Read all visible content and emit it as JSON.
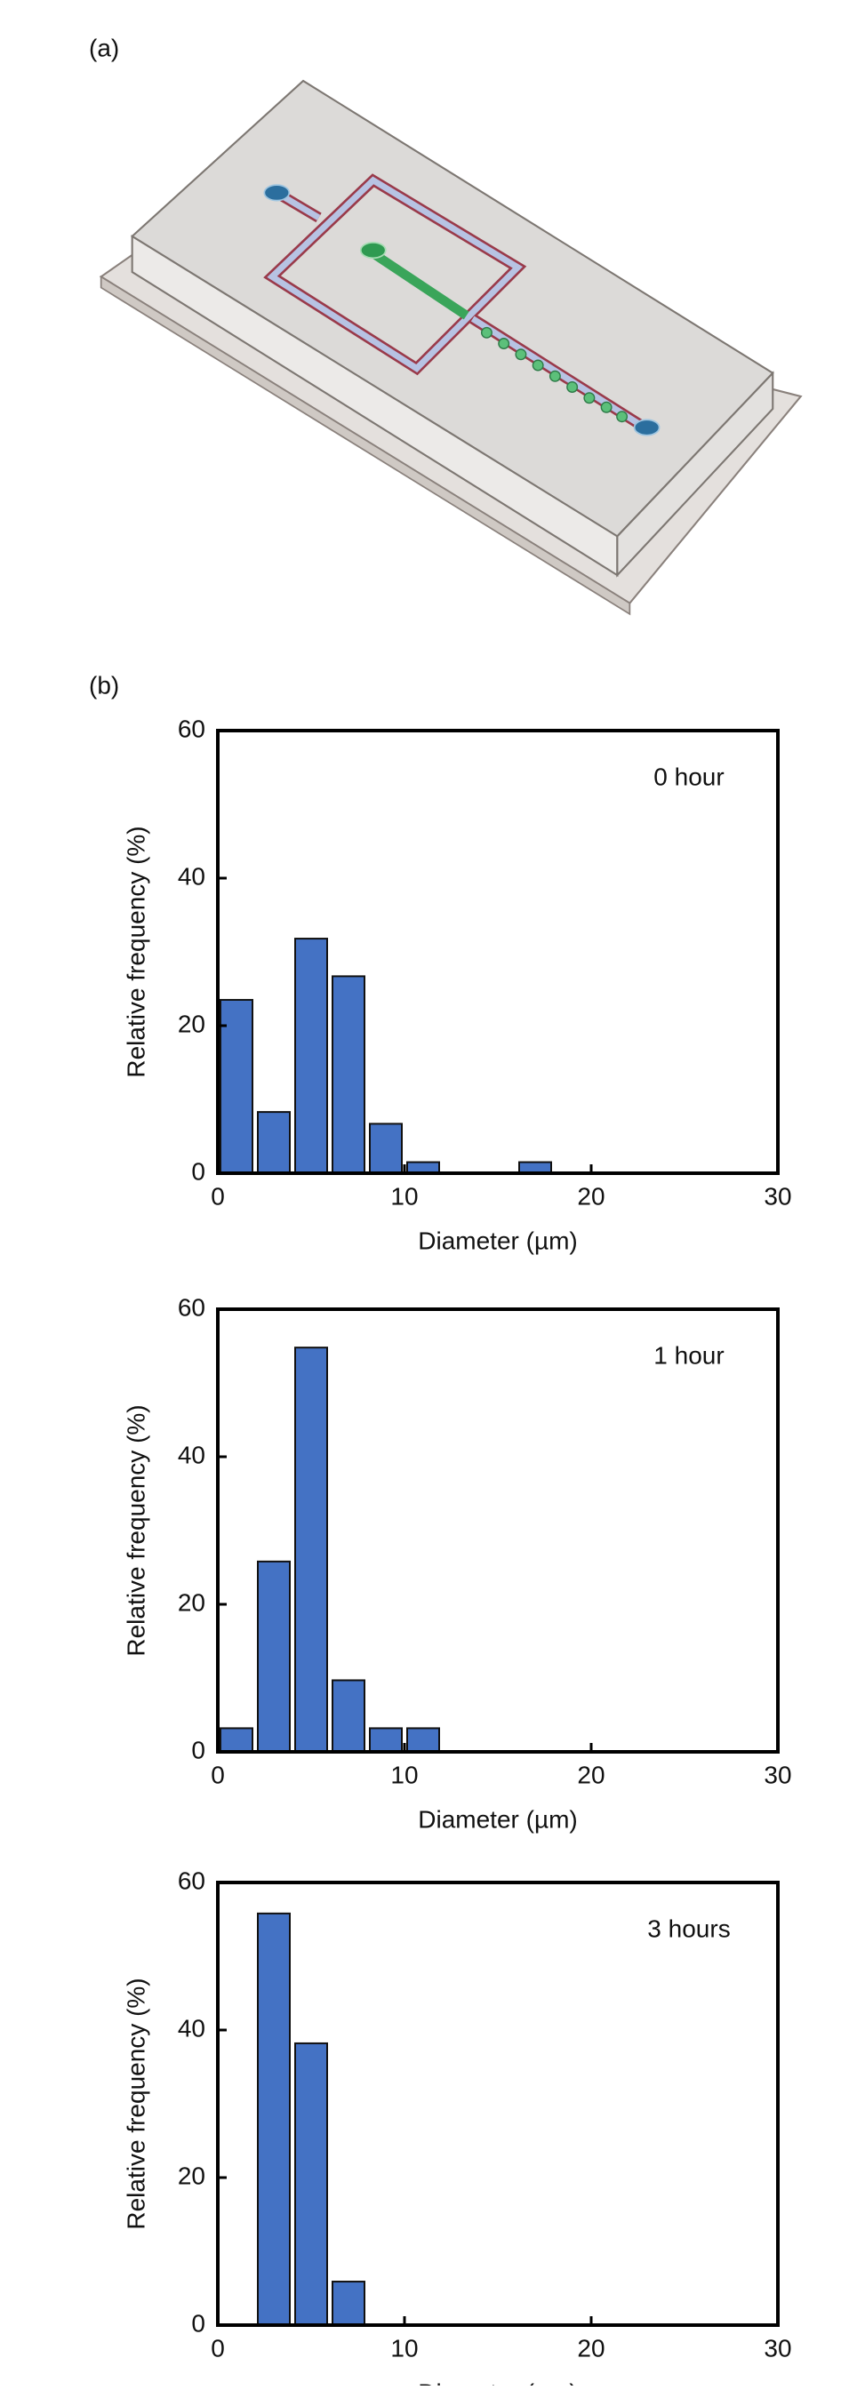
{
  "panel_labels": [
    "(a)",
    "(b)"
  ],
  "chart_data": [
    {
      "type": "histogram",
      "title": "0 hour",
      "x_label": "Diameter (µm)",
      "y_label": "Relative frequency (%)",
      "bins": [
        0,
        2,
        4,
        6,
        8,
        10,
        12,
        14,
        16,
        18
      ],
      "values": [
        23.5,
        8.3,
        31.8,
        26.7,
        6.7,
        1.5,
        0,
        0,
        1.5
      ],
      "color": "#4472c4",
      "xlim": [
        0,
        30
      ],
      "xticks": [
        0,
        10,
        20,
        30
      ],
      "ylim": [
        0,
        60
      ],
      "yticks": [
        0,
        20,
        40,
        60
      ]
    },
    {
      "type": "histogram",
      "title": "1 hour",
      "x_label": "Diameter (µm)",
      "y_label": "Relative frequency (%)",
      "bins": [
        0,
        2,
        4,
        6,
        8,
        10,
        12
      ],
      "values": [
        3.2,
        25.8,
        54.8,
        9.7,
        3.2,
        3.2
      ],
      "color": "#4472c4",
      "xlim": [
        0,
        30
      ],
      "xticks": [
        0,
        10,
        20,
        30
      ],
      "ylim": [
        0,
        60
      ],
      "yticks": [
        0,
        20,
        40,
        60
      ]
    },
    {
      "type": "histogram",
      "title": "3 hours",
      "x_label": "Diameter (µm)",
      "y_label": "Relative frequency (%)",
      "bins": [
        0,
        2,
        4,
        6,
        8
      ],
      "values": [
        0,
        55.8,
        38.2,
        5.9
      ],
      "color": "#4472c4",
      "xlim": [
        0,
        30
      ],
      "xticks": [
        0,
        10,
        20,
        30
      ],
      "ylim": [
        0,
        60
      ],
      "yticks": [
        0,
        20,
        40,
        60
      ]
    }
  ]
}
